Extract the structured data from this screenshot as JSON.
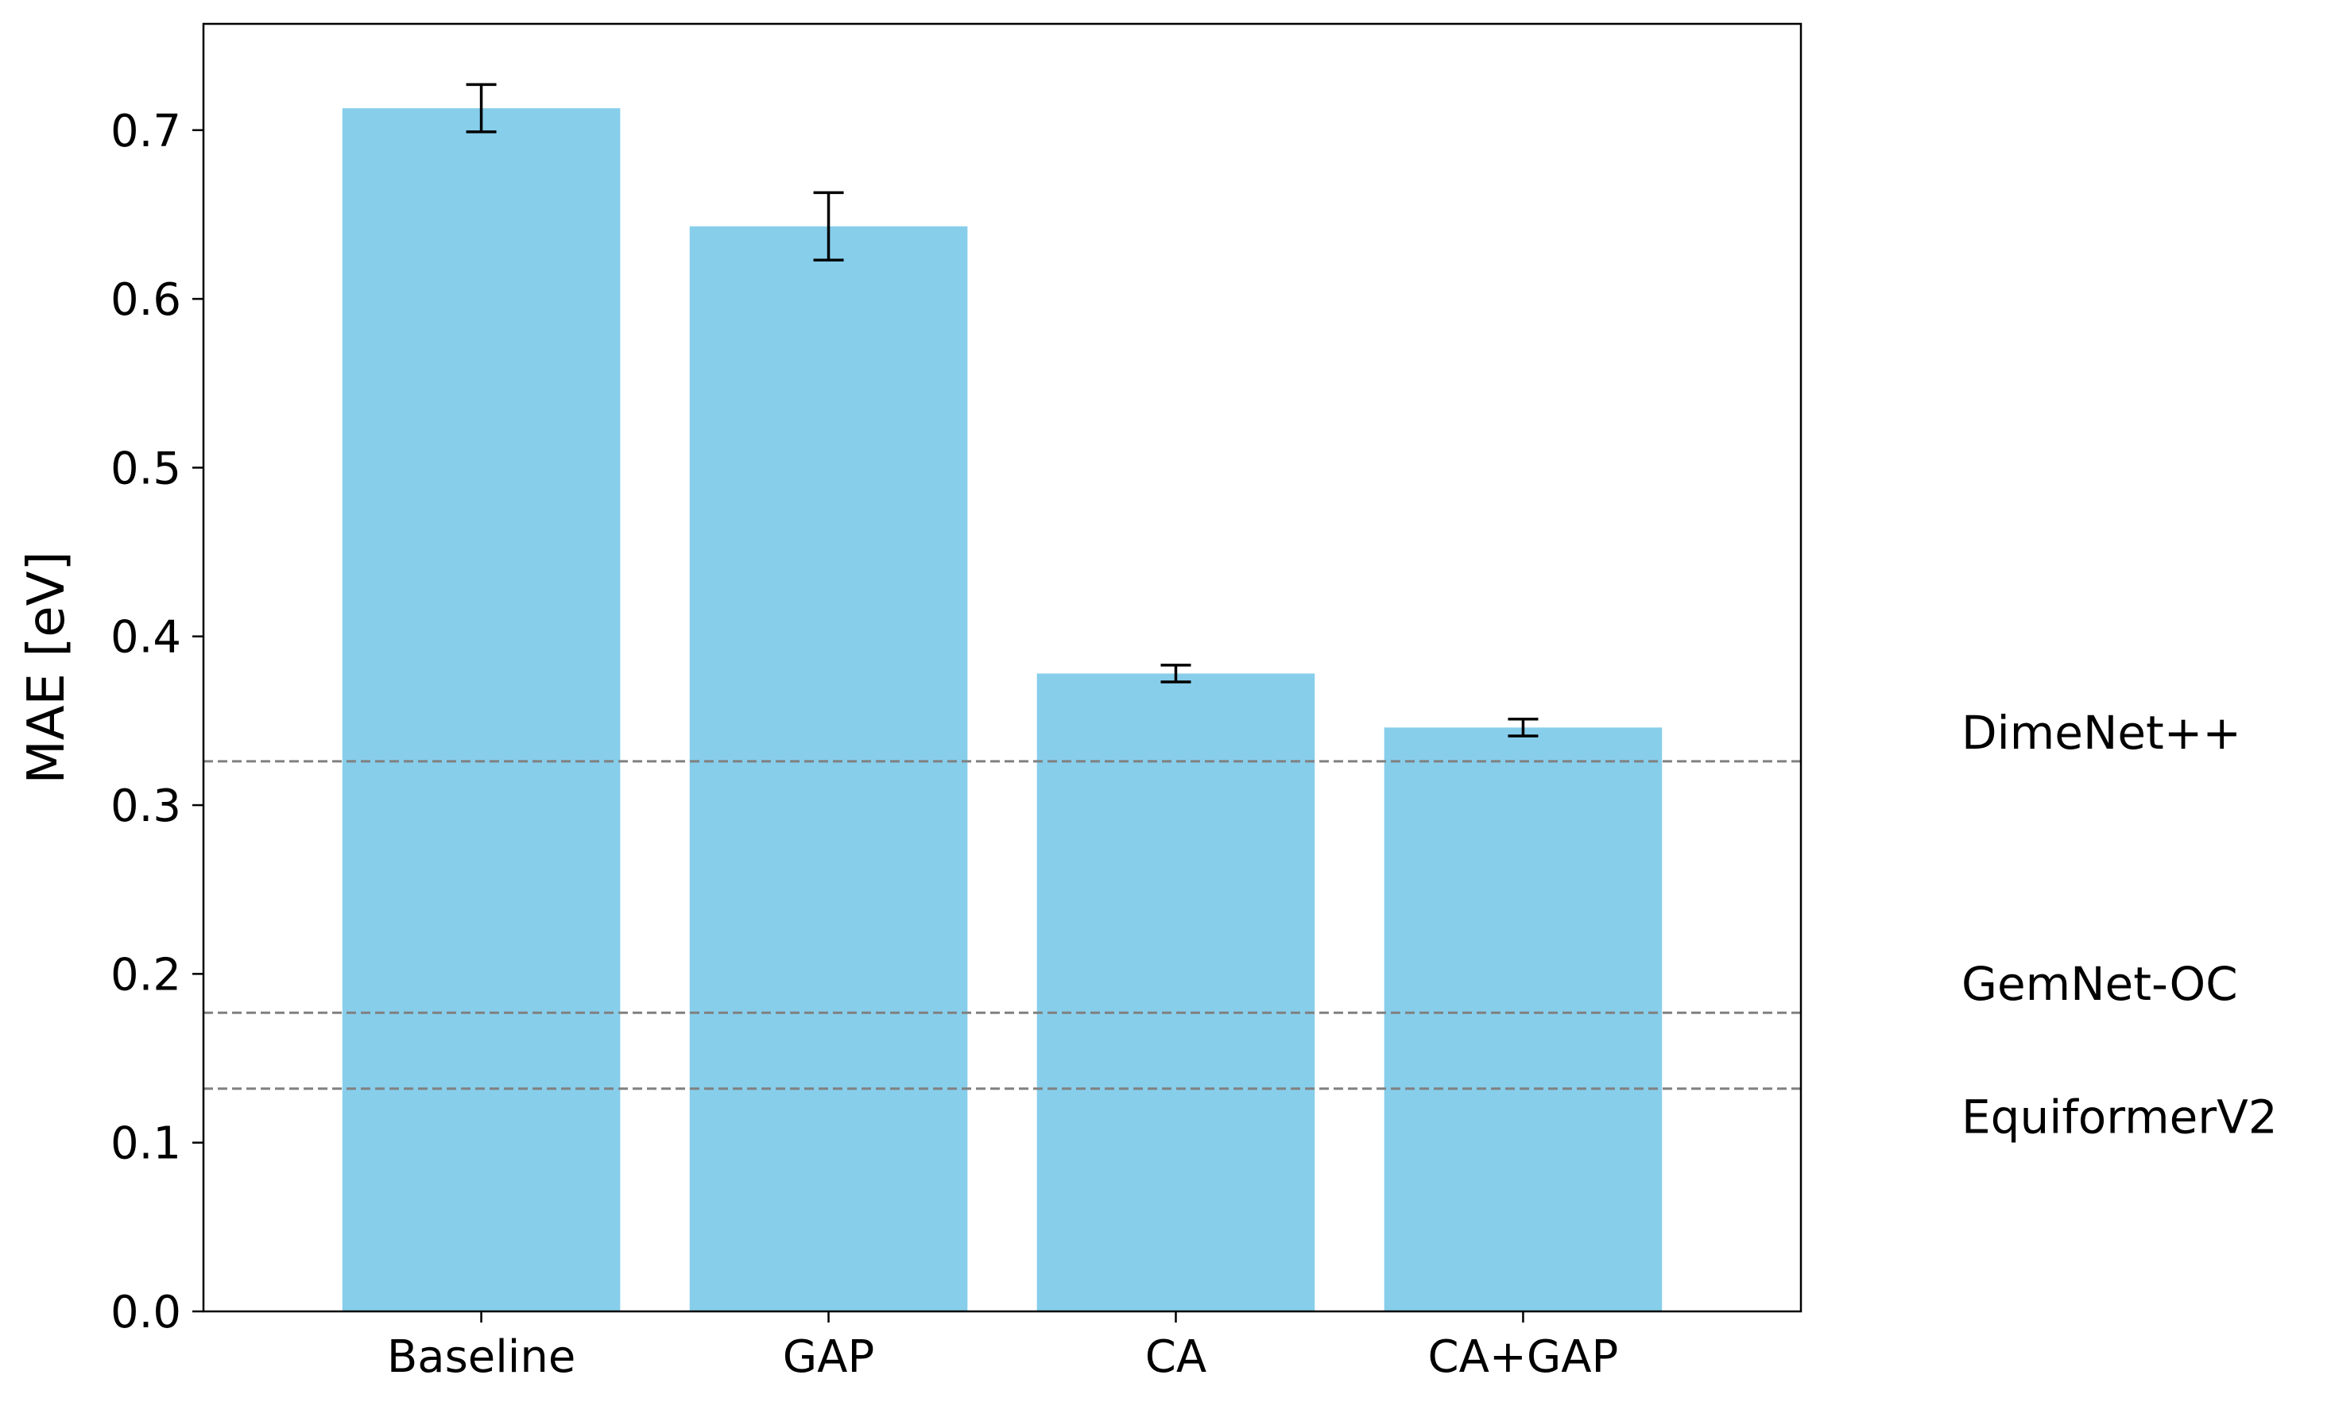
{
  "chart_data": {
    "type": "bar",
    "title": "",
    "xlabel": "",
    "ylabel": "MAE [eV]",
    "ylim": [
      0,
      0.763
    ],
    "yticks": [
      "0.0",
      "0.1",
      "0.2",
      "0.3",
      "0.4",
      "0.5",
      "0.6",
      "0.7"
    ],
    "grid": false,
    "categories": [
      "Baseline",
      "GAP",
      "CA",
      "CA+GAP"
    ],
    "values": [
      0.713,
      0.643,
      0.378,
      0.346
    ],
    "errors": [
      0.014,
      0.02,
      0.005,
      0.005
    ],
    "colors": {
      "bar": "#87CEEB",
      "error_bar": "#000000",
      "reference_line": "#808080",
      "axes": "#000000"
    },
    "reference_lines": [
      {
        "name": "DimeNet++",
        "value": 0.326
      },
      {
        "name": "GemNet-OC",
        "value": 0.177
      },
      {
        "name": "EquiformerV2",
        "value": 0.132
      }
    ]
  }
}
